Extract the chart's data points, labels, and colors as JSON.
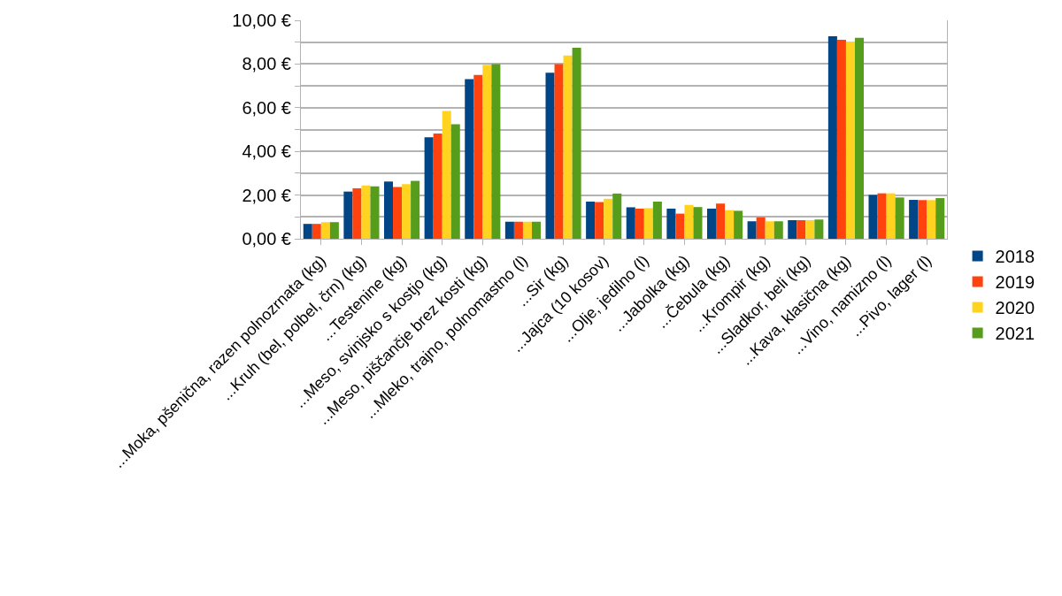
{
  "chart_data": {
    "type": "bar",
    "categories": [
      "...Moka, pšenična, razen polnozrnata (kg)",
      "...Kruh (bel, polbel, črn) (kg)",
      "...Testenine (kg)",
      "...Meso, svinjsko s kostjo (kg)",
      "...Meso, piščančje brez kosti (kg)",
      "...Mleko, trajno, polnomastno (l)",
      "...Sir (kg)",
      "...Jajca (10 kosov)",
      "...Olje, jedilno (l)",
      "...Jabolka (kg)",
      "...Čebula (kg)",
      "...Krompir (kg)",
      "...Sladkor, beli (kg)",
      "...Kava, klasična (kg)",
      "...Vino, namizno (l)",
      "...Pivo, lager (l)"
    ],
    "series": [
      {
        "name": "2018",
        "color": "#004586",
        "values": [
          0.68,
          2.16,
          2.62,
          4.65,
          7.31,
          0.78,
          7.6,
          1.7,
          1.44,
          1.38,
          1.38,
          0.8,
          0.85,
          9.27,
          2.01,
          1.78
        ]
      },
      {
        "name": "2019",
        "color": "#ff420e",
        "values": [
          0.68,
          2.31,
          2.37,
          4.82,
          7.5,
          0.78,
          8.0,
          1.68,
          1.38,
          1.15,
          1.61,
          0.98,
          0.85,
          9.11,
          2.08,
          1.77
        ]
      },
      {
        "name": "2020",
        "color": "#ffd320",
        "values": [
          0.76,
          2.44,
          2.5,
          5.85,
          7.97,
          0.78,
          8.39,
          1.83,
          1.4,
          1.55,
          1.31,
          0.8,
          0.85,
          9.03,
          2.08,
          1.77
        ]
      },
      {
        "name": "2021",
        "color": "#579d1c",
        "values": [
          0.76,
          2.4,
          2.65,
          5.24,
          8.0,
          0.78,
          8.74,
          2.07,
          1.7,
          1.45,
          1.28,
          0.8,
          0.88,
          9.2,
          1.89,
          1.86
        ]
      }
    ],
    "ylim": [
      0,
      10
    ],
    "yticks": [
      {
        "value": 0,
        "label": "0,00 €"
      },
      {
        "value": 1,
        "label": null
      },
      {
        "value": 2,
        "label": "2,00 €"
      },
      {
        "value": 3,
        "label": null
      },
      {
        "value": 4,
        "label": "4,00 €"
      },
      {
        "value": 5,
        "label": null
      },
      {
        "value": 6,
        "label": "6,00 €"
      },
      {
        "value": 7,
        "label": null
      },
      {
        "value": 8,
        "label": "8,00 €"
      },
      {
        "value": 9,
        "label": null
      },
      {
        "value": 10,
        "label": "10,00 €"
      }
    ],
    "grid": "y",
    "legend": "right"
  }
}
